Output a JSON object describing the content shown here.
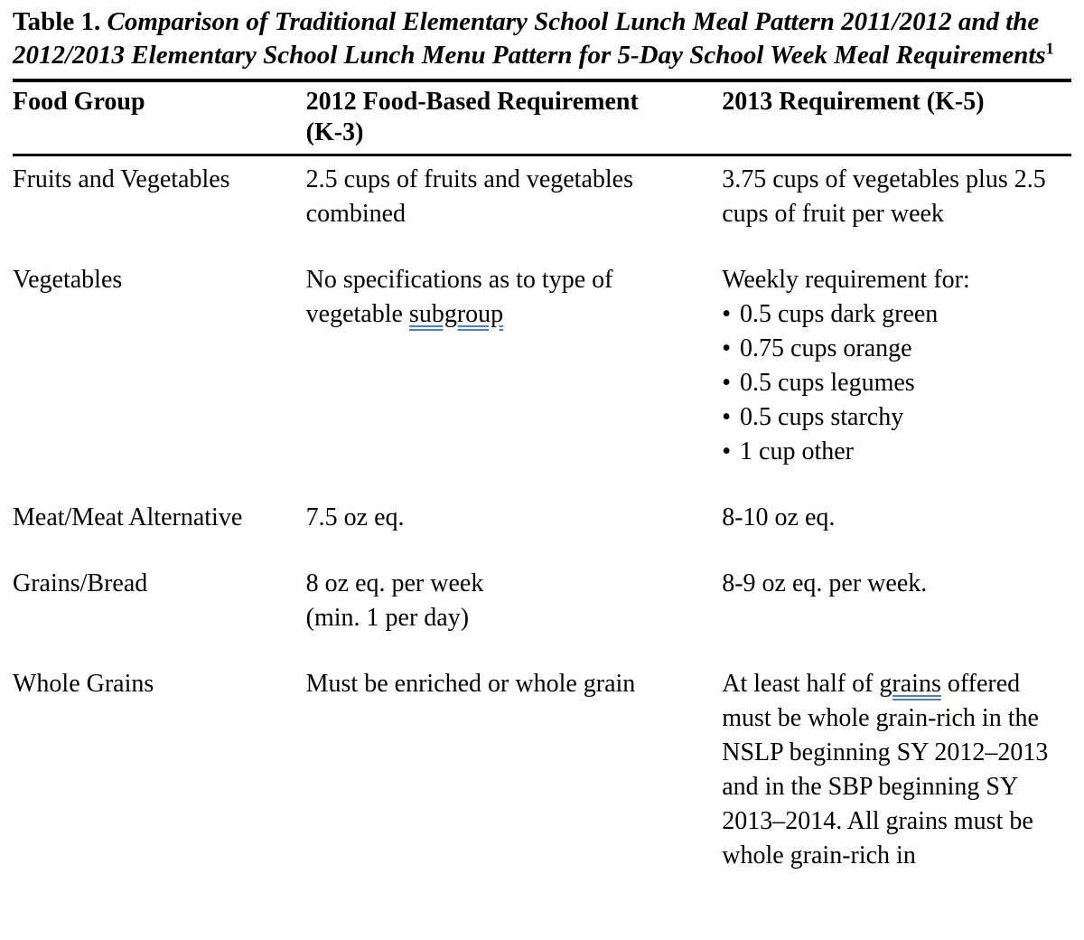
{
  "bullet_char": "•",
  "caption": {
    "label": "Table 1.",
    "title": "Comparison of Traditional Elementary School Lunch Meal Pattern 2011/2012 and the 2012/2013 Elementary School Lunch Menu Pattern for 5-Day School Week Meal Requirements",
    "footnote_marker": "1"
  },
  "table": {
    "columns": [
      {
        "lines": [
          "Food Group"
        ]
      },
      {
        "lines": [
          "2012 Food-Based Requirement",
          "(K-3)"
        ]
      },
      {
        "lines": [
          "2013 Requirement (K-5)"
        ]
      }
    ],
    "rows": [
      {
        "food_group": "Fruits and Vegetables",
        "col2012": "2.5 cups of fruits and vegetables combined",
        "col2013": "3.75 cups of vegetables plus 2.5 cups of fruit per week"
      },
      {
        "food_group": "Vegetables",
        "col2012_before": "No specifications as to type of vegetable",
        "col2012_underlined": "subgroup",
        "col2013_intro": "Weekly requirement for:",
        "col2013_bullets": [
          "0.5 cups dark green",
          "0.75 cups orange",
          "0.5 cups legumes",
          "0.5 cups starchy",
          "1 cup other"
        ]
      },
      {
        "food_group": "Meat/Meat Alternative",
        "col2012": "7.5 oz eq.",
        "col2013": "8-10 oz eq."
      },
      {
        "food_group": "Grains/Bread",
        "col2012_line1": "8 oz eq. per week",
        "col2012_line2": "(min. 1 per day)",
        "col2013": "8-9 oz eq. per week."
      },
      {
        "food_group": "Whole Grains",
        "col2012": "Must be enriched or whole grain",
        "col2013_before": "At least half of",
        "col2013_underlined": "grains",
        "col2013_after": "offered must be whole grain-rich in the NSLP beginning SY 2012–2013 and in the SBP beginning SY 2013–2014. All grains must be whole grain-rich in"
      }
    ]
  }
}
